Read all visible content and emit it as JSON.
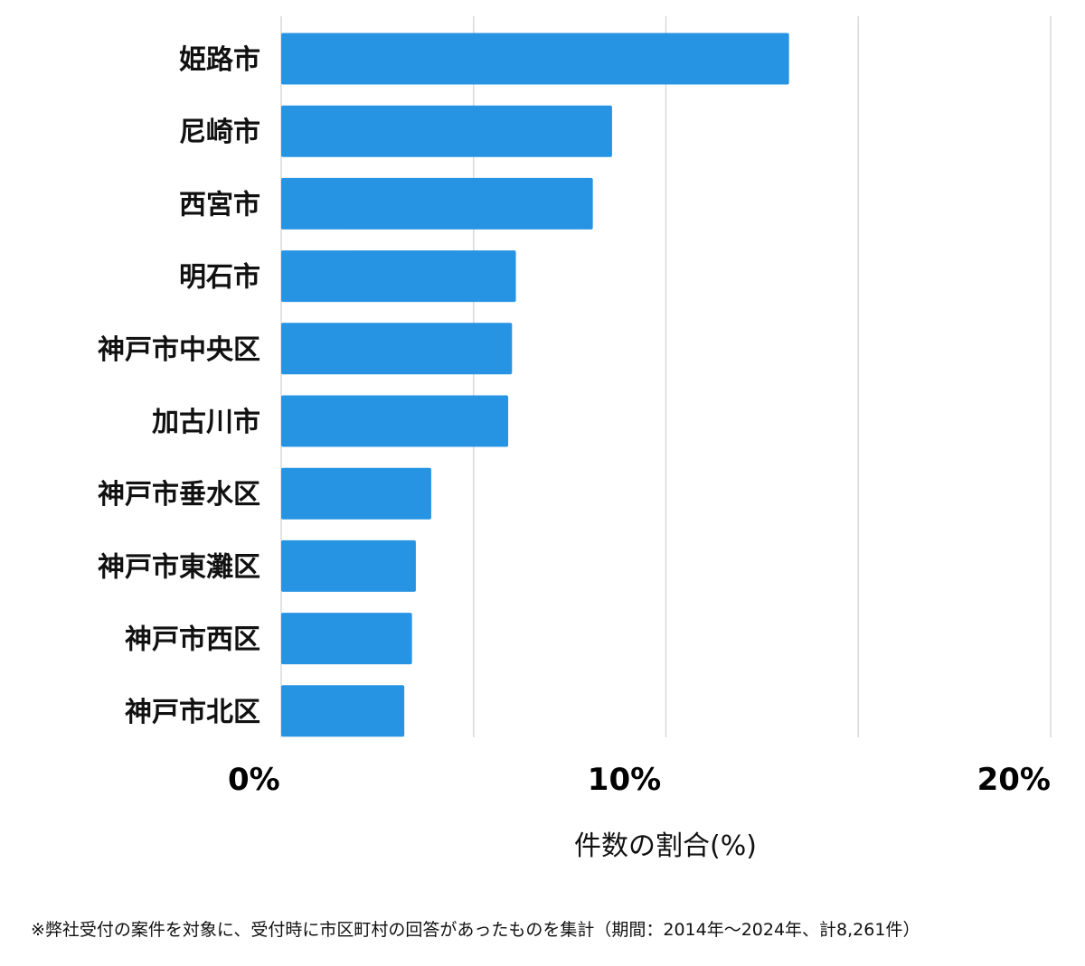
{
  "chart_data": {
    "type": "bar",
    "orientation": "horizontal",
    "categories": [
      "姫路市",
      "尼崎市",
      "西宮市",
      "明石市",
      "神戸市中央区",
      "加古川市",
      "神戸市垂水区",
      "神戸市東灘区",
      "神戸市西区",
      "神戸市北区"
    ],
    "values": [
      13.2,
      8.6,
      8.1,
      6.1,
      6.0,
      5.9,
      3.9,
      3.5,
      3.4,
      3.2
    ],
    "xlabel": "件数の割合(%)",
    "ylabel": "",
    "xlim": [
      0,
      20
    ],
    "x_ticks": [
      {
        "value": 0,
        "label": "0%"
      },
      {
        "value": 10,
        "label": "10%"
      },
      {
        "value": 20,
        "label": "20%"
      }
    ],
    "gridlines_at": [
      0,
      5,
      10,
      15,
      20
    ],
    "grid": true,
    "bar_color": "#2794e3",
    "grid_color": "#d9d9d9"
  },
  "footnote": "※弊社受付の案件を対象に、受付時に市区町村の回答があったものを集計（期間：2014年～2024年、計8,261件）"
}
